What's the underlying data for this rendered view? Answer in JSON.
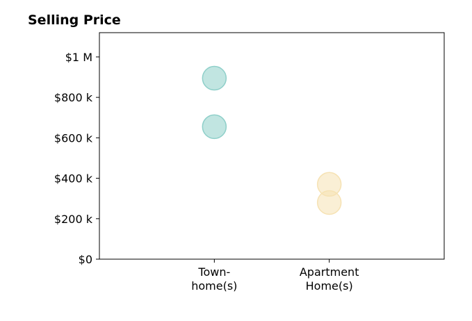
{
  "chart_data": {
    "type": "scatter",
    "title": "Selling Price",
    "xlabel": "",
    "ylabel": "",
    "categories": [
      [
        "Town-",
        "home(s)"
      ],
      [
        "Apartment",
        "Home(s)"
      ]
    ],
    "y_ticks": [
      {
        "value": 0,
        "label": "$0"
      },
      {
        "value": 200000,
        "label": "$200 k"
      },
      {
        "value": 400000,
        "label": "$400 k"
      },
      {
        "value": 600000,
        "label": "$600 k"
      },
      {
        "value": 800000,
        "label": "$800 k"
      },
      {
        "value": 1000000,
        "label": "$1 M"
      }
    ],
    "ylim": [
      0,
      1120000
    ],
    "xlim": [
      0,
      3
    ],
    "grid": false,
    "series": [
      {
        "category_index": 0,
        "color": "#8ecfc9",
        "values": [
          895000,
          655000
        ]
      },
      {
        "category_index": 1,
        "color": "#f6e2b3",
        "values": [
          370000,
          280000
        ]
      }
    ]
  }
}
